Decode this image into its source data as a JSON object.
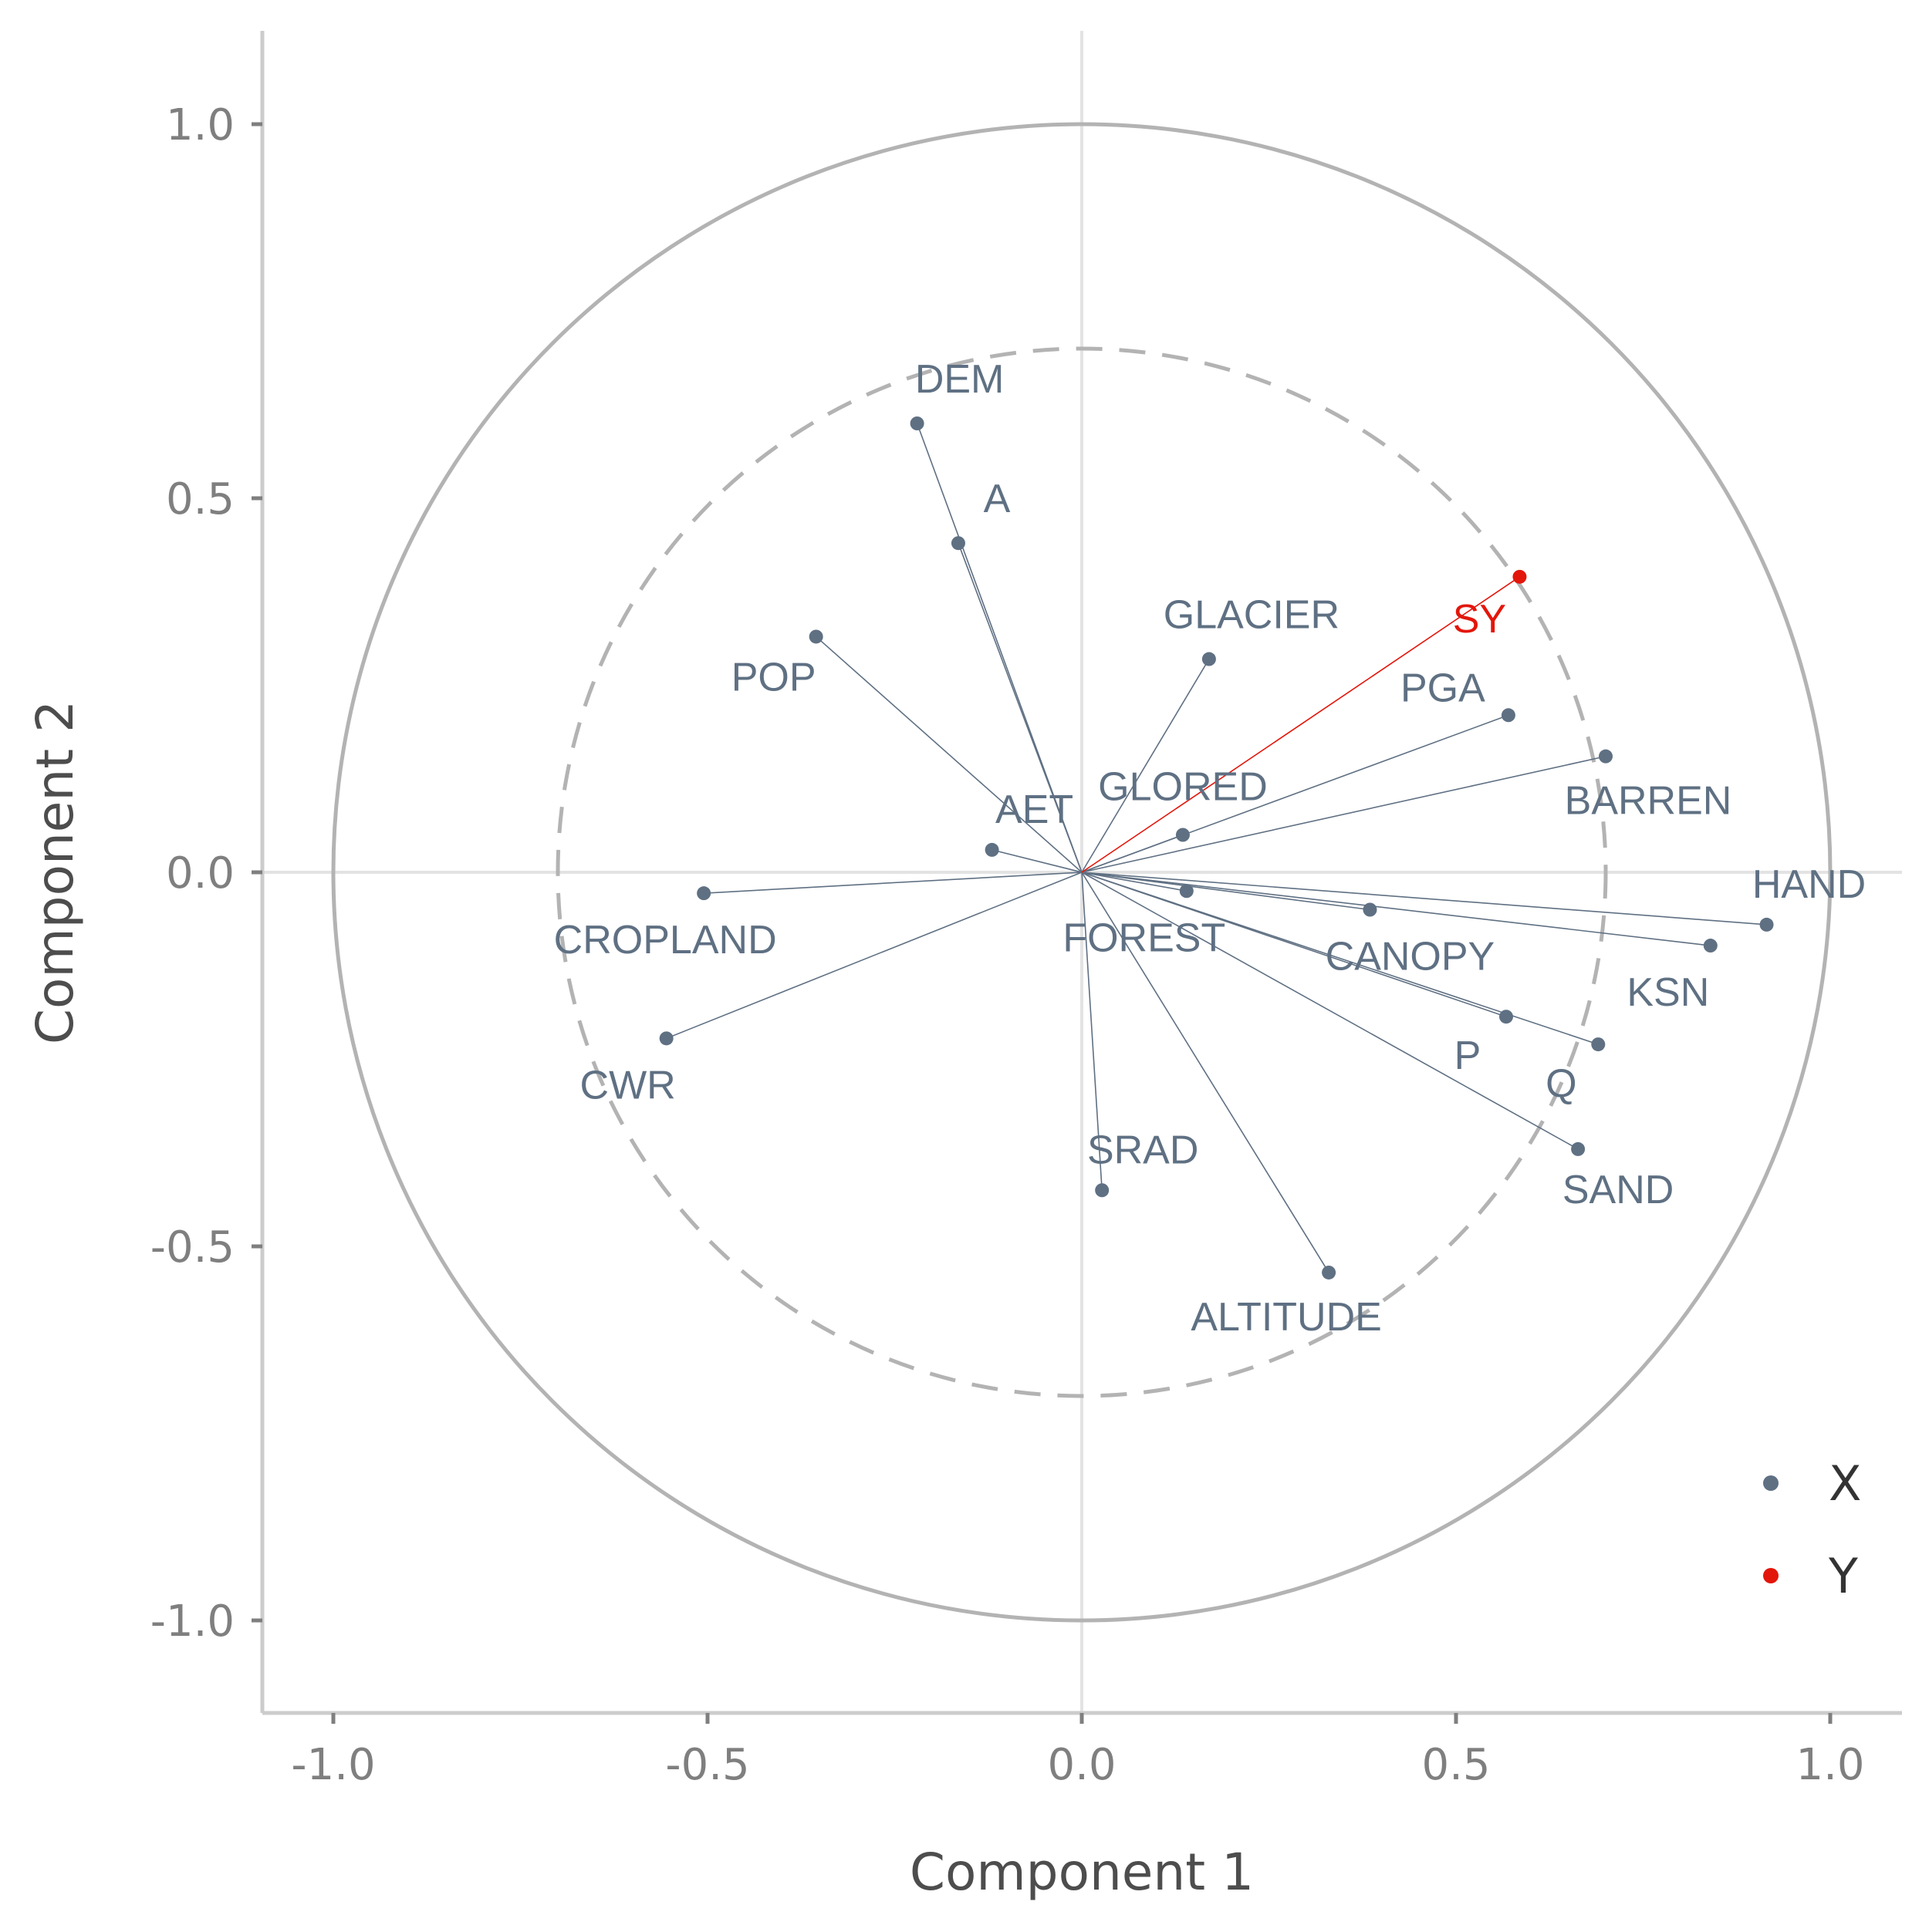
{
  "chart_data": {
    "type": "scatter",
    "subtype": "correlation-circle",
    "xlabel": "Component  1",
    "ylabel": "Component 2",
    "xlim": [
      -1.1,
      1.1
    ],
    "ylim": [
      -1.1,
      1.1
    ],
    "x_ticks": [
      -1.0,
      -0.5,
      0.0,
      0.5,
      1.0
    ],
    "y_ticks": [
      -1.0,
      -0.5,
      0.0,
      0.5,
      1.0
    ],
    "x_tick_labels": [
      "-1.0",
      "-0.5",
      "0.0",
      "0.5",
      "1.0"
    ],
    "y_tick_labels": [
      "-1.0",
      "-0.5",
      "0.0",
      "0.5",
      "1.0"
    ],
    "circles": [
      {
        "radius": 1.0,
        "style": "solid"
      },
      {
        "radius": 0.7,
        "style": "dashed"
      }
    ],
    "grid": "zero lines only",
    "legend": {
      "placement": "bottom-right",
      "entries": [
        {
          "name": "X",
          "color": "#5f7083"
        },
        {
          "name": "Y",
          "color": "#e3160b"
        }
      ]
    },
    "series": [
      {
        "name": "X",
        "color": "#5f7083",
        "points": [
          {
            "label": "DEM",
            "x": -0.22,
            "y": 0.6
          },
          {
            "label": "A",
            "x": -0.165,
            "y": 0.44
          },
          {
            "label": "POP",
            "x": -0.355,
            "y": 0.315
          },
          {
            "label": "GLACIER",
            "x": 0.17,
            "y": 0.285
          },
          {
            "label": "PGA",
            "x": 0.57,
            "y": 0.21
          },
          {
            "label": "BARREN",
            "x": 0.7,
            "y": 0.155
          },
          {
            "label": "AET",
            "x": -0.12,
            "y": 0.03
          },
          {
            "label": "GLORED",
            "x": 0.135,
            "y": 0.05
          },
          {
            "label": "CROPLAND",
            "x": -0.505,
            "y": -0.028
          },
          {
            "label": "FOREST",
            "x": 0.14,
            "y": -0.025
          },
          {
            "label": "CANOPY",
            "x": 0.385,
            "y": -0.05
          },
          {
            "label": "HAND",
            "x": 0.915,
            "y": -0.07
          },
          {
            "label": "KSN",
            "x": 0.84,
            "y": -0.098
          },
          {
            "label": "P",
            "x": 0.567,
            "y": -0.193
          },
          {
            "label": "Q",
            "x": 0.69,
            "y": -0.23
          },
          {
            "label": "CWR",
            "x": -0.555,
            "y": -0.222
          },
          {
            "label": "SAND",
            "x": 0.663,
            "y": -0.37
          },
          {
            "label": "SRAD",
            "x": 0.027,
            "y": -0.425
          },
          {
            "label": "ALTITUDE",
            "x": 0.33,
            "y": -0.535
          }
        ]
      },
      {
        "name": "Y",
        "color": "#e3160b",
        "points": [
          {
            "label": "SY",
            "x": 0.585,
            "y": 0.395
          }
        ]
      }
    ]
  }
}
